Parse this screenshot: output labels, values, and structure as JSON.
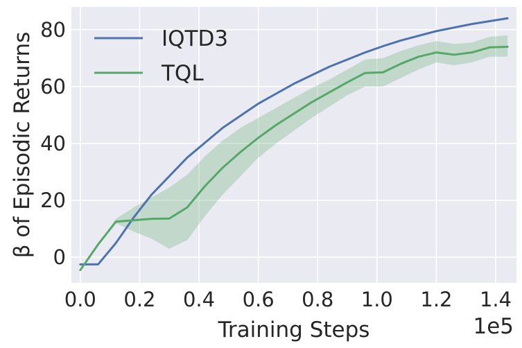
{
  "chart_data": {
    "type": "line",
    "title": "",
    "xlabel": "Training Steps",
    "ylabel": "β of Episodic Returns",
    "x_offset_label": "1e5",
    "xlim": [
      -0.03,
      1.47
    ],
    "ylim": [
      -9,
      88
    ],
    "xticks": [
      0.0,
      0.2,
      0.4,
      0.6,
      0.8,
      1.0,
      1.2,
      1.4
    ],
    "xtick_labels": [
      "0.0",
      "0.2",
      "0.4",
      "0.6",
      "0.8",
      "1.0",
      "1.2",
      "1.4"
    ],
    "yticks": [
      0,
      20,
      40,
      60,
      80
    ],
    "ytick_labels": [
      "0",
      "20",
      "40",
      "60",
      "80"
    ],
    "grid": true,
    "legend_position": "top-left",
    "colors": {
      "background": "#eaeaf2",
      "grid": "#ffffff",
      "iqtd3": "#4c72b0",
      "tql": "#55a868",
      "tql_band": "#55a868"
    },
    "series": [
      {
        "name": "IQTD3",
        "x": [
          0.0,
          0.06,
          0.12,
          0.18,
          0.24,
          0.36,
          0.48,
          0.6,
          0.72,
          0.84,
          0.96,
          1.02,
          1.08,
          1.2,
          1.32,
          1.44
        ],
        "y": [
          -2.5,
          -2.5,
          5.0,
          14.0,
          22.0,
          35.0,
          45.5,
          54.0,
          61.0,
          67.0,
          72.0,
          74.2,
          76.2,
          79.5,
          82.0,
          84.0
        ]
      },
      {
        "name": "TQL",
        "x": [
          0.0,
          0.06,
          0.12,
          0.18,
          0.24,
          0.3,
          0.36,
          0.42,
          0.48,
          0.54,
          0.6,
          0.66,
          0.72,
          0.78,
          0.84,
          0.9,
          0.96,
          1.02,
          1.08,
          1.14,
          1.2,
          1.26,
          1.32,
          1.38,
          1.44
        ],
        "y": [
          -4.5,
          4.5,
          12.5,
          13.0,
          13.5,
          13.6,
          17.5,
          25.0,
          31.5,
          37.0,
          42.0,
          46.5,
          50.5,
          54.5,
          58.0,
          61.5,
          64.8,
          65.0,
          68.0,
          70.5,
          72.0,
          71.2,
          72.0,
          73.8,
          74.0
        ],
        "lower": [
          -4.5,
          4.5,
          12.0,
          9.0,
          6.5,
          3.0,
          6.0,
          14.5,
          22.0,
          28.5,
          35.0,
          40.0,
          44.5,
          49.0,
          53.0,
          57.0,
          60.0,
          60.0,
          63.0,
          66.0,
          68.5,
          67.5,
          68.5,
          70.5,
          70.5
        ],
        "upper": [
          -4.5,
          4.5,
          13.5,
          17.5,
          21.0,
          24.5,
          29.0,
          35.5,
          41.0,
          45.5,
          49.0,
          52.5,
          56.0,
          59.5,
          62.5,
          66.0,
          69.5,
          70.0,
          72.5,
          74.5,
          76.0,
          75.0,
          75.5,
          77.5,
          78.0
        ]
      }
    ]
  }
}
